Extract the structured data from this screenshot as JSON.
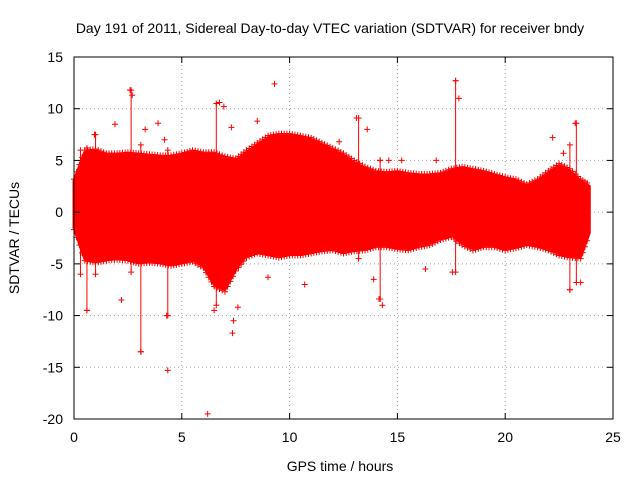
{
  "chart_data": {
    "type": "scatter",
    "title": "Day 191 of 2011, Sidereal Day-to-day VTEC variation (SDTVAR) for receiver bndy",
    "xlabel": "GPS time / hours",
    "ylabel": "SDTVAR / TECUs",
    "xlim": [
      0,
      25
    ],
    "ylim": [
      -20,
      15
    ],
    "xticks": [
      0,
      5,
      10,
      15,
      20,
      25
    ],
    "yticks": [
      -20,
      -15,
      -10,
      -5,
      0,
      5,
      10,
      15
    ],
    "grid": true,
    "marker": "+",
    "series_color": "#ff0000",
    "envelope": {
      "x": [
        0.0,
        0.5,
        1.0,
        1.5,
        2.0,
        2.5,
        3.0,
        3.5,
        4.0,
        4.5,
        5.0,
        5.5,
        6.0,
        6.5,
        7.0,
        7.5,
        8.0,
        8.5,
        9.0,
        9.5,
        10.0,
        10.5,
        11.0,
        11.5,
        12.0,
        12.5,
        13.0,
        13.5,
        14.0,
        14.5,
        15.0,
        15.5,
        16.0,
        16.5,
        17.0,
        17.5,
        18.0,
        18.5,
        19.0,
        19.5,
        20.0,
        20.5,
        21.0,
        21.5,
        22.0,
        22.5,
        23.0,
        23.5,
        23.9
      ],
      "upper": [
        3.0,
        5.8,
        5.9,
        5.5,
        5.5,
        5.6,
        5.5,
        5.4,
        5.3,
        5.3,
        5.5,
        5.8,
        5.6,
        5.6,
        5.2,
        5.0,
        5.8,
        6.5,
        7.2,
        7.4,
        7.4,
        7.2,
        7.0,
        6.5,
        6.0,
        5.5,
        4.8,
        4.2,
        3.8,
        3.7,
        3.8,
        3.6,
        3.5,
        3.5,
        3.6,
        4.0,
        4.2,
        4.0,
        3.8,
        3.5,
        3.2,
        3.0,
        2.5,
        3.0,
        3.8,
        4.5,
        4.0,
        3.0,
        2.5
      ],
      "lower": [
        -1.5,
        -4.5,
        -4.7,
        -4.5,
        -4.4,
        -4.5,
        -4.8,
        -4.7,
        -4.8,
        -5.0,
        -4.8,
        -4.6,
        -5.2,
        -7.0,
        -7.5,
        -5.5,
        -4.2,
        -3.8,
        -4.0,
        -4.2,
        -4.0,
        -4.0,
        -3.8,
        -3.6,
        -3.5,
        -3.8,
        -3.6,
        -3.5,
        -3.2,
        -3.2,
        -3.4,
        -3.5,
        -3.2,
        -3.0,
        -2.5,
        -2.2,
        -3.0,
        -3.5,
        -3.2,
        -3.2,
        -3.5,
        -3.3,
        -3.0,
        -3.2,
        -3.5,
        -4.0,
        -4.2,
        -4.3,
        -2.0
      ]
    },
    "outliers": [
      {
        "x": 0.6,
        "y": -9.5
      },
      {
        "x": 0.95,
        "y": 7.5
      },
      {
        "x": 1.9,
        "y": 8.5
      },
      {
        "x": 2.2,
        "y": -8.5
      },
      {
        "x": 2.6,
        "y": 11.8
      },
      {
        "x": 2.7,
        "y": 11.3
      },
      {
        "x": 3.1,
        "y": -13.5
      },
      {
        "x": 3.3,
        "y": 8.0
      },
      {
        "x": 3.9,
        "y": 8.6
      },
      {
        "x": 4.2,
        "y": 7.0
      },
      {
        "x": 4.35,
        "y": -15.3
      },
      {
        "x": 4.3,
        "y": -10.0
      },
      {
        "x": 6.2,
        "y": -19.5
      },
      {
        "x": 6.5,
        "y": -9.5
      },
      {
        "x": 6.75,
        "y": 10.6
      },
      {
        "x": 6.95,
        "y": 10.2
      },
      {
        "x": 7.4,
        "y": -10.5
      },
      {
        "x": 7.35,
        "y": -11.7
      },
      {
        "x": 7.3,
        "y": 8.2
      },
      {
        "x": 7.6,
        "y": -9.2
      },
      {
        "x": 8.5,
        "y": 8.8
      },
      {
        "x": 9.0,
        "y": -6.3
      },
      {
        "x": 9.3,
        "y": 12.4
      },
      {
        "x": 10.7,
        "y": -7.0
      },
      {
        "x": 12.3,
        "y": 6.8
      },
      {
        "x": 13.1,
        "y": 9.1
      },
      {
        "x": 13.6,
        "y": 8.0
      },
      {
        "x": 13.9,
        "y": -6.5
      },
      {
        "x": 14.15,
        "y": -8.4
      },
      {
        "x": 14.3,
        "y": -9.0
      },
      {
        "x": 14.2,
        "y": 5.0
      },
      {
        "x": 14.6,
        "y": 5.0
      },
      {
        "x": 15.2,
        "y": 5.0
      },
      {
        "x": 16.3,
        "y": -5.5
      },
      {
        "x": 16.8,
        "y": 5.0
      },
      {
        "x": 17.55,
        "y": -5.8
      },
      {
        "x": 17.7,
        "y": 12.7
      },
      {
        "x": 17.85,
        "y": 11.0
      },
      {
        "x": 22.2,
        "y": 7.2
      },
      {
        "x": 22.7,
        "y": 5.7
      },
      {
        "x": 23.0,
        "y": -7.5
      },
      {
        "x": 23.25,
        "y": 8.6
      },
      {
        "x": 23.5,
        "y": -6.8
      }
    ],
    "spikes": [
      {
        "x": 0.3,
        "lo": -6.0,
        "hi": 6.0
      },
      {
        "x": 0.6,
        "lo": -9.5,
        "hi": 6.2
      },
      {
        "x": 1.0,
        "lo": -6.0,
        "hi": 7.5
      },
      {
        "x": 2.65,
        "lo": -5.8,
        "hi": 11.8
      },
      {
        "x": 3.1,
        "lo": -13.5,
        "hi": 6.5
      },
      {
        "x": 4.35,
        "lo": -10.0,
        "hi": 6.0
      },
      {
        "x": 6.6,
        "lo": -9.0,
        "hi": 10.5
      },
      {
        "x": 13.2,
        "lo": -4.5,
        "hi": 9.1
      },
      {
        "x": 14.2,
        "lo": -8.4,
        "hi": 5.0
      },
      {
        "x": 17.7,
        "lo": -5.8,
        "hi": 12.7
      },
      {
        "x": 23.0,
        "lo": -7.5,
        "hi": 6.5
      },
      {
        "x": 23.3,
        "lo": -6.8,
        "hi": 8.6
      }
    ]
  }
}
